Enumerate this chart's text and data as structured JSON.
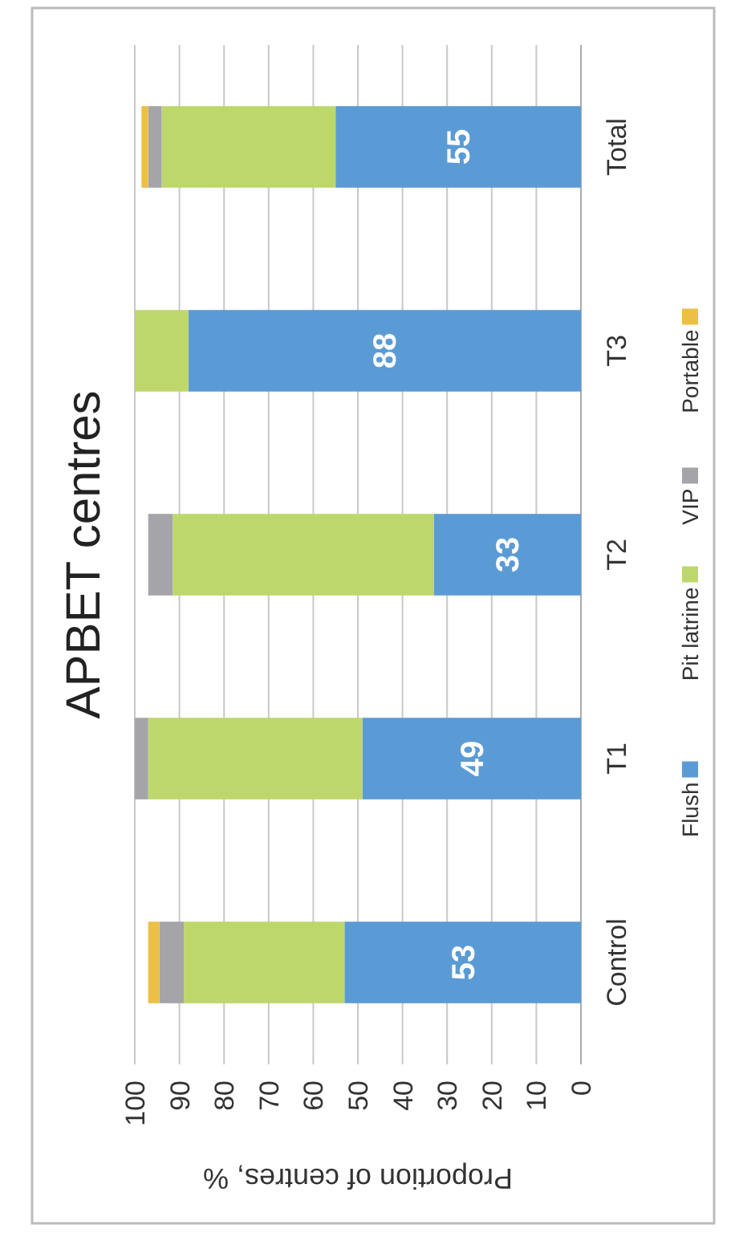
{
  "chart_data": {
    "type": "bar",
    "orientation": "horizontal",
    "title": "APBET centres",
    "xlabel": "Proportion of centres, %",
    "categories": [
      "Total",
      "T3",
      "T2",
      "T1",
      "Control"
    ],
    "stacked": true,
    "xlim": [
      100,
      0
    ],
    "xticks": [
      0,
      10,
      20,
      30,
      40,
      50,
      60,
      70,
      80,
      90,
      100
    ],
    "grid": "x",
    "legend": "right",
    "series": [
      {
        "name": "Flush",
        "color": "#5b9bd5",
        "values": [
          55,
          88,
          33,
          49,
          53
        ],
        "value_labels": [
          "55",
          "88",
          "33",
          "49",
          "53"
        ]
      },
      {
        "name": "Pit latrine",
        "color": "#bed76a",
        "values": [
          39,
          12,
          58.5,
          48,
          36
        ]
      },
      {
        "name": "VIP",
        "color": "#a5a4a9",
        "values": [
          3,
          null,
          5.5,
          3,
          5.5
        ]
      },
      {
        "name": "Portable",
        "color": "#ecbf45",
        "values": [
          1.5,
          null,
          null,
          null,
          2.5
        ]
      }
    ]
  }
}
